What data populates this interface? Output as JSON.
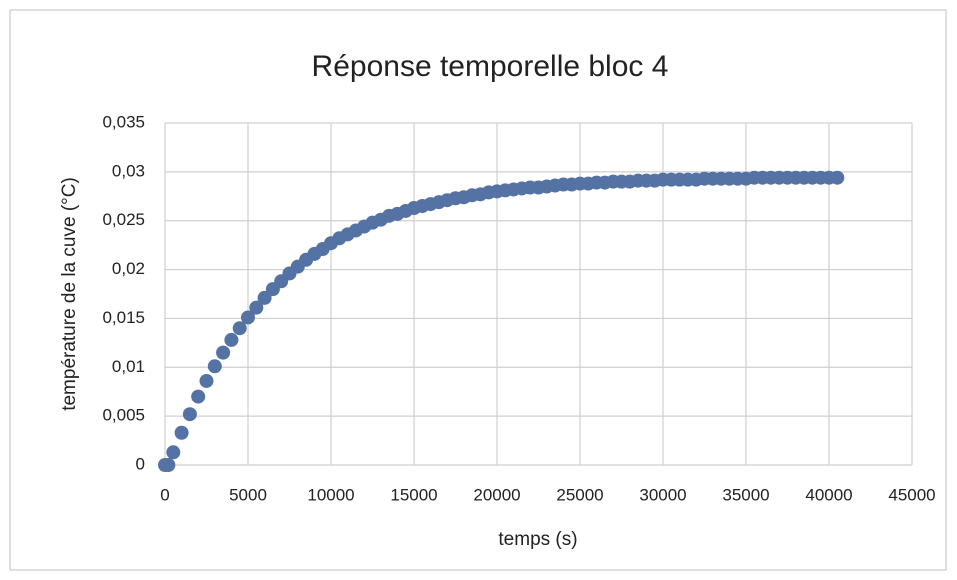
{
  "chart_data": {
    "type": "scatter",
    "title": "Réponse temporelle bloc 4",
    "x_label": "temps (s)",
    "y_label": "température de la cuve (°C)",
    "color": "#5472a3",
    "grid": true,
    "x": [
      0,
      200,
      500,
      1000,
      1500,
      2000,
      2500,
      3000,
      3500,
      4000,
      4500,
      5000,
      5500,
      6000,
      6500,
      7000,
      7500,
      8000,
      8500,
      9000,
      9500,
      10000,
      10500,
      11000,
      11500,
      12000,
      12500,
      13000,
      13500,
      14000,
      14500,
      15000,
      15500,
      16000,
      16500,
      17000,
      17500,
      18000,
      18500,
      19000,
      19500,
      20000,
      20500,
      21000,
      21500,
      22000,
      22500,
      23000,
      23500,
      24000,
      24500,
      25000,
      25500,
      26000,
      26500,
      27000,
      27500,
      28000,
      28500,
      29000,
      29500,
      30000,
      30500,
      31000,
      31500,
      32000,
      32500,
      33000,
      33500,
      34000,
      34500,
      35000,
      35500,
      36000,
      36500,
      37000,
      37500,
      38000,
      38500,
      39000,
      39500,
      40000,
      40500
    ],
    "values": [
      0,
      0,
      0.0013,
      0.0033,
      0.0052,
      0.007,
      0.0086,
      0.0101,
      0.0115,
      0.0128,
      0.014,
      0.0151,
      0.0161,
      0.0171,
      0.018,
      0.0188,
      0.0196,
      0.0203,
      0.021,
      0.0216,
      0.0221,
      0.0227,
      0.0232,
      0.0236,
      0.024,
      0.0244,
      0.0248,
      0.0251,
      0.0255,
      0.0257,
      0.026,
      0.0263,
      0.0265,
      0.0267,
      0.0269,
      0.0271,
      0.0273,
      0.0274,
      0.0276,
      0.0277,
      0.0279,
      0.028,
      0.0281,
      0.0282,
      0.0283,
      0.0284,
      0.0284,
      0.0285,
      0.0286,
      0.0287,
      0.0287,
      0.0288,
      0.0288,
      0.0289,
      0.0289,
      0.029,
      0.029,
      0.029,
      0.0291,
      0.0291,
      0.0291,
      0.0292,
      0.0292,
      0.0292,
      0.0292,
      0.0292,
      0.0293,
      0.0293,
      0.0293,
      0.0293,
      0.0293,
      0.0293,
      0.0294,
      0.0294,
      0.0294,
      0.0294,
      0.0294,
      0.0294,
      0.0294,
      0.0294,
      0.0294,
      0.0294,
      0.0294
    ],
    "xlim": [
      0,
      45000
    ],
    "xticks": [
      0,
      5000,
      10000,
      15000,
      20000,
      25000,
      30000,
      35000,
      40000,
      45000
    ],
    "ylim": [
      0,
      0.035
    ],
    "yticks": [
      0,
      {
        "value": 0.005,
        "label": "0,005"
      },
      {
        "value": 0.01,
        "label": "0,01"
      },
      {
        "value": 0.015,
        "label": "0,015"
      },
      {
        "value": 0.02,
        "label": "0,02"
      },
      {
        "value": 0.025,
        "label": "0,025"
      },
      {
        "value": 0.03,
        "label": "0,03"
      },
      {
        "value": 0.035,
        "label": "0,035"
      }
    ]
  }
}
